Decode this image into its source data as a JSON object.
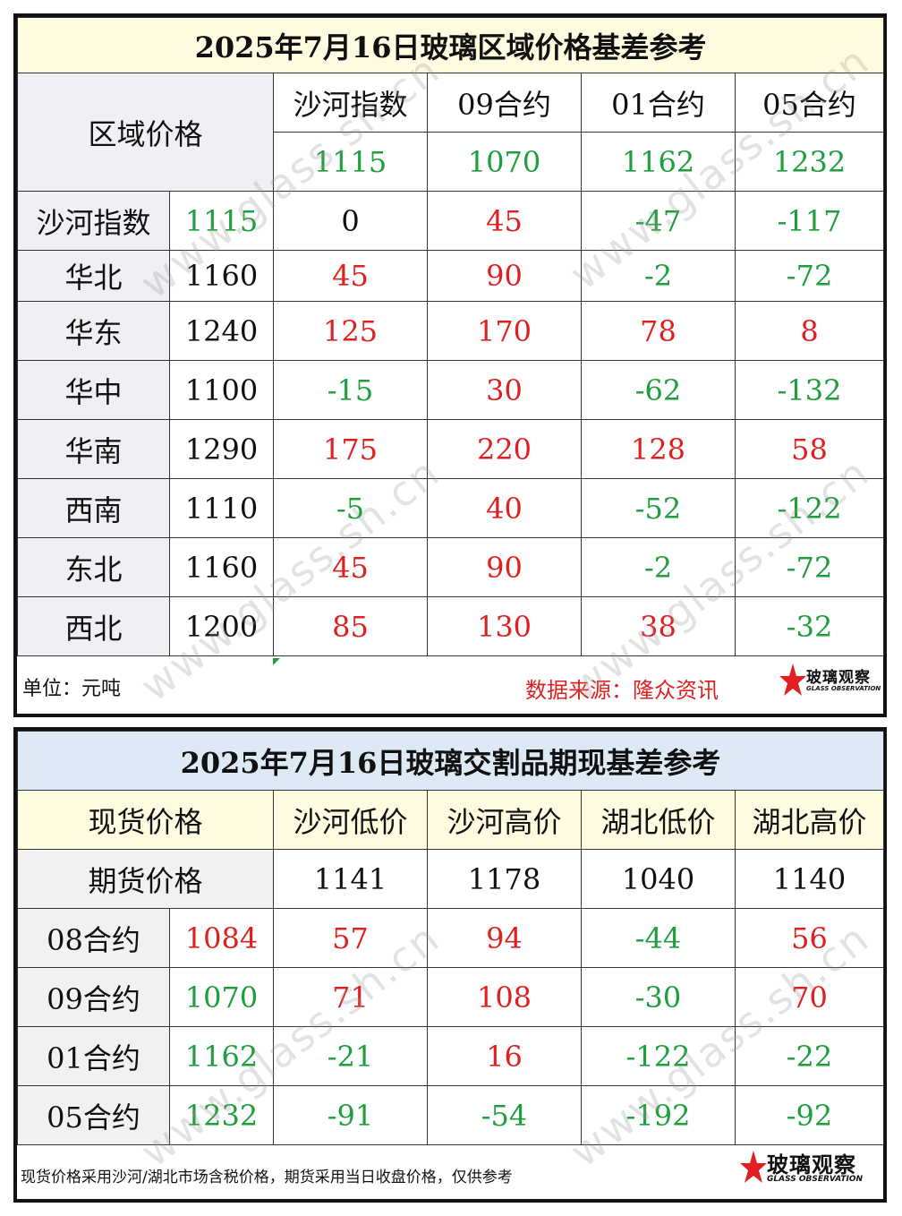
{
  "region_table": {
    "title": "2025年7月16日玻璃区域价格基差参考",
    "corner_label": "区域价格",
    "columns": [
      "沙河指数",
      "09合约",
      "01合约",
      "05合约"
    ],
    "column_prices": [
      "1115",
      "1070",
      "1162",
      "1232"
    ],
    "rows": [
      {
        "name": "沙河指数",
        "price": "1115",
        "values": [
          "0",
          "45",
          "-47",
          "-117"
        ]
      },
      {
        "name": "华北",
        "price": "1160",
        "values": [
          "45",
          "90",
          "-2",
          "-72"
        ]
      },
      {
        "name": "华东",
        "price": "1240",
        "values": [
          "125",
          "170",
          "78",
          "8"
        ]
      },
      {
        "name": "华中",
        "price": "1100",
        "values": [
          "-15",
          "30",
          "-62",
          "-132"
        ]
      },
      {
        "name": "华南",
        "price": "1290",
        "values": [
          "175",
          "220",
          "128",
          "58"
        ]
      },
      {
        "name": "西南",
        "price": "1110",
        "values": [
          "-5",
          "40",
          "-52",
          "-122"
        ]
      },
      {
        "name": "东北",
        "price": "1160",
        "values": [
          "45",
          "90",
          "-2",
          "-72"
        ]
      },
      {
        "name": "西北",
        "price": "1200",
        "values": [
          "85",
          "130",
          "38",
          "-32"
        ]
      }
    ],
    "unit": "单位：元吨",
    "source": "数据来源：隆众资讯"
  },
  "delivery_table": {
    "title": "2025年7月16日玻璃交割品期现基差参考",
    "spot_label": "现货价格",
    "futures_label": "期货价格",
    "columns": [
      "沙河低价",
      "沙河高价",
      "湖北低价",
      "湖北高价"
    ],
    "column_prices": [
      "1141",
      "1178",
      "1040",
      "1140"
    ],
    "rows": [
      {
        "name": "08合约",
        "price": "1084",
        "values": [
          "57",
          "94",
          "-44",
          "56"
        ]
      },
      {
        "name": "09合约",
        "price": "1070",
        "values": [
          "71",
          "108",
          "-30",
          "70"
        ]
      },
      {
        "name": "01合约",
        "price": "1162",
        "values": [
          "-21",
          "16",
          "-122",
          "-22"
        ]
      },
      {
        "name": "05合约",
        "price": "1232",
        "values": [
          "-91",
          "-54",
          "-192",
          "-92"
        ]
      }
    ],
    "note": "现货价格采用沙河/湖北市场含税价格，期货采用当日收盘价格，仅供参考"
  },
  "logo": {
    "name": "玻璃观察",
    "sub": "GLASS OBSERVATION"
  },
  "watermark_text": "www.glass.sh.cn",
  "colors": {
    "positive": "#e02020",
    "negative": "#1e9e3c",
    "neutral": "#111111",
    "title_bg": "#fffbe0",
    "title2_bg": "#ddeaf6",
    "label_bg": "#eef0f3"
  },
  "region_price_colors": [
    "green",
    "black",
    "black",
    "black",
    "black",
    "black",
    "black",
    "black"
  ],
  "delivery_price_colors": [
    "red",
    "green",
    "green",
    "green"
  ]
}
